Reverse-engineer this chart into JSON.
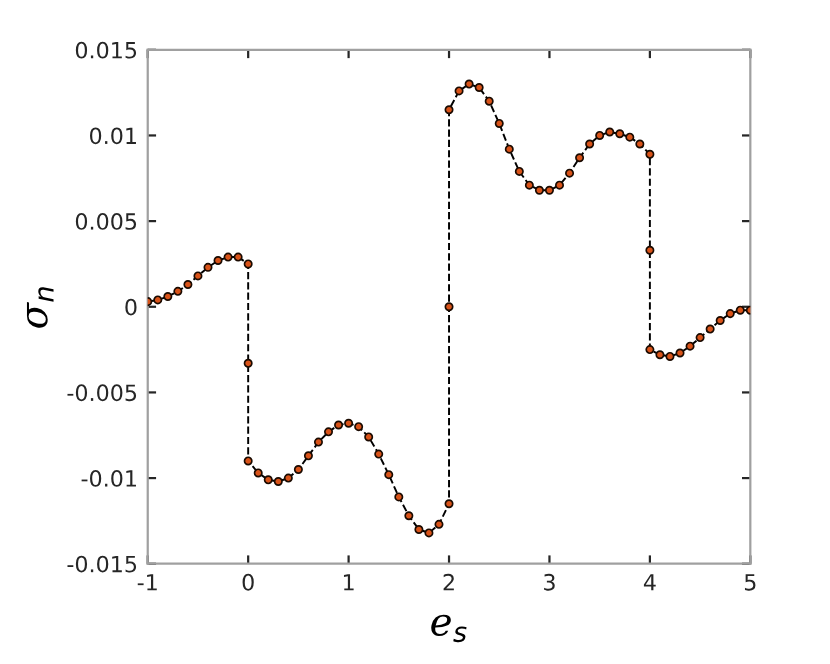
{
  "chart_data": {
    "type": "line",
    "xlabel": "e$_{s}$",
    "ylabel": "σ$_{n}$",
    "xlim": [
      -1,
      5
    ],
    "ylim": [
      -0.015,
      0.015
    ],
    "xticks": [
      -1,
      0,
      1,
      2,
      3,
      4,
      5
    ],
    "yticks": [
      -0.015,
      -0.01,
      -0.005,
      0,
      0.005,
      0.01,
      0.015
    ],
    "grid": false,
    "legend": false,
    "series": [
      {
        "color": "#000000",
        "line_style": "dashed",
        "marker": "none",
        "x": [
          -1,
          -0.9,
          -0.8,
          -0.7,
          -0.6,
          -0.5,
          -0.4,
          -0.3,
          -0.2,
          -0.1,
          0,
          0,
          0,
          0.1,
          0.2,
          0.3,
          0.4,
          0.5,
          0.6,
          0.7,
          0.8,
          0.9,
          1.0,
          1.1,
          1.2,
          1.3,
          1.4,
          1.5,
          1.6,
          1.7,
          1.8,
          1.9,
          2.0,
          2.0,
          2.0,
          2.1,
          2.2,
          2.3,
          2.4,
          2.5,
          2.6,
          2.7,
          2.8,
          2.9,
          3.0,
          3.1,
          3.2,
          3.3,
          3.4,
          3.5,
          3.6,
          3.7,
          3.8,
          3.9,
          4.0,
          4.0,
          4.0,
          4.1,
          4.2,
          4.3,
          4.4,
          4.5,
          4.6,
          4.7,
          4.8,
          4.9,
          5.0
        ],
        "values": [
          0.0003,
          0.0004,
          0.0006,
          0.0009,
          0.0013,
          0.0018,
          0.0023,
          0.0027,
          0.0029,
          0.0029,
          0.0025,
          -0.0033,
          -0.009,
          -0.0097,
          -0.0101,
          -0.0102,
          -0.01,
          -0.0095,
          -0.0087,
          -0.0079,
          -0.0073,
          -0.0069,
          -0.0068,
          -0.007,
          -0.0076,
          -0.0086,
          -0.0098,
          -0.0111,
          -0.0122,
          -0.013,
          -0.0132,
          -0.0127,
          -0.0115,
          0.0,
          0.0115,
          0.0126,
          0.013,
          0.0128,
          0.012,
          0.0107,
          0.0092,
          0.0079,
          0.0071,
          0.0068,
          0.0068,
          0.0071,
          0.0078,
          0.0087,
          0.0095,
          0.01,
          0.0102,
          0.0101,
          0.0099,
          0.0095,
          0.0089,
          0.0033,
          -0.0025,
          -0.0028,
          -0.0029,
          -0.0027,
          -0.0023,
          -0.0018,
          -0.0013,
          -0.0008,
          -0.0004,
          -0.0002,
          -0.0002
        ]
      },
      {
        "type": "scatter",
        "color": "#d95319",
        "marker": "circle",
        "x": [
          -1,
          -0.9,
          -0.8,
          -0.7,
          -0.6,
          -0.5,
          -0.4,
          -0.3,
          -0.2,
          -0.1,
          0,
          0,
          0,
          0.1,
          0.2,
          0.3,
          0.4,
          0.5,
          0.6,
          0.7,
          0.8,
          0.9,
          1.0,
          1.1,
          1.2,
          1.3,
          1.4,
          1.5,
          1.6,
          1.7,
          1.8,
          1.9,
          2.0,
          2.0,
          2.0,
          2.1,
          2.2,
          2.3,
          2.4,
          2.5,
          2.6,
          2.7,
          2.8,
          2.9,
          3.0,
          3.1,
          3.2,
          3.3,
          3.4,
          3.5,
          3.6,
          3.7,
          3.8,
          3.9,
          4.0,
          4.0,
          4.0,
          4.1,
          4.2,
          4.3,
          4.4,
          4.5,
          4.6,
          4.7,
          4.8,
          4.9,
          5.0
        ],
        "values": [
          0.0003,
          0.0004,
          0.0006,
          0.0009,
          0.0013,
          0.0018,
          0.0023,
          0.0027,
          0.0029,
          0.0029,
          0.0025,
          -0.0033,
          -0.009,
          -0.0097,
          -0.0101,
          -0.0102,
          -0.01,
          -0.0095,
          -0.0087,
          -0.0079,
          -0.0073,
          -0.0069,
          -0.0068,
          -0.007,
          -0.0076,
          -0.0086,
          -0.0098,
          -0.0111,
          -0.0122,
          -0.013,
          -0.0132,
          -0.0127,
          -0.0115,
          0.0,
          0.0115,
          0.0126,
          0.013,
          0.0128,
          0.012,
          0.0107,
          0.0092,
          0.0079,
          0.0071,
          0.0068,
          0.0068,
          0.0071,
          0.0078,
          0.0087,
          0.0095,
          0.01,
          0.0102,
          0.0101,
          0.0099,
          0.0095,
          0.0089,
          0.0033,
          -0.0025,
          -0.0028,
          -0.0029,
          -0.0027,
          -0.0023,
          -0.0018,
          -0.0013,
          -0.0008,
          -0.0004,
          -0.0002,
          -0.0002
        ]
      }
    ]
  }
}
